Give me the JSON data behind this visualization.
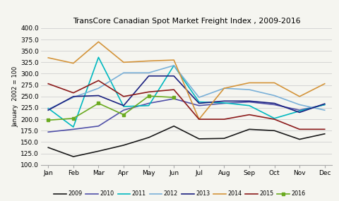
{
  "title": "TransCore Canadian Spot Market Freight Index , 2009-2016",
  "ylabel": "January  2002 = 100",
  "months": [
    "Jan",
    "Feb",
    "Mar",
    "Apr",
    "May",
    "Jun",
    "Jul",
    "Aug",
    "Sep",
    "Oct",
    "Nov",
    "Dec"
  ],
  "ylim": [
    100.0,
    400.0
  ],
  "yticks": [
    100.0,
    125.0,
    150.0,
    175.0,
    200.0,
    225.0,
    250.0,
    275.0,
    300.0,
    325.0,
    350.0,
    375.0,
    400.0
  ],
  "series": {
    "2009": {
      "values": [
        138,
        118,
        130,
        143,
        160,
        185,
        157,
        158,
        178,
        175,
        156,
        168
      ],
      "color": "#1a1a1a",
      "linewidth": 1.2,
      "marker": "None",
      "zorder": 2
    },
    "2010": {
      "values": [
        172,
        178,
        185,
        220,
        235,
        245,
        230,
        235,
        238,
        232,
        220,
        232
      ],
      "color": "#5050a8",
      "linewidth": 1.2,
      "marker": "None",
      "zorder": 2
    },
    "2011": {
      "values": [
        224,
        183,
        336,
        228,
        230,
        318,
        238,
        236,
        230,
        202,
        218,
        232
      ],
      "color": "#00b8c0",
      "linewidth": 1.2,
      "marker": "None",
      "zorder": 2
    },
    "2012": {
      "values": [
        222,
        248,
        268,
        302,
        302,
        318,
        248,
        268,
        265,
        252,
        232,
        220
      ],
      "color": "#7ab0d8",
      "linewidth": 1.2,
      "marker": "None",
      "zorder": 2
    },
    "2013": {
      "values": [
        220,
        250,
        252,
        230,
        295,
        295,
        235,
        240,
        240,
        235,
        215,
        234
      ],
      "color": "#1a2080",
      "linewidth": 1.2,
      "marker": "None",
      "zorder": 2
    },
    "2014": {
      "values": [
        335,
        323,
        370,
        325,
        328,
        330,
        200,
        268,
        280,
        280,
        250,
        278
      ],
      "color": "#d4943a",
      "linewidth": 1.2,
      "marker": "None",
      "zorder": 2
    },
    "2015": {
      "values": [
        278,
        258,
        285,
        250,
        260,
        265,
        200,
        200,
        210,
        200,
        178,
        178
      ],
      "color": "#8b1a1a",
      "linewidth": 1.2,
      "marker": "None",
      "zorder": 2
    },
    "2016": {
      "values": [
        198,
        202,
        235,
        210,
        251,
        248,
        null,
        null,
        null,
        null,
        null,
        null
      ],
      "color": "#6aaa20",
      "linewidth": 1.2,
      "marker": "s",
      "zorder": 3
    }
  },
  "legend_order": [
    "2009",
    "2010",
    "2011",
    "2012",
    "2013",
    "2014",
    "2015",
    "2016"
  ],
  "background_color": "#f5f5f0",
  "plot_bg": "#f5f5f0",
  "grid_color": "#c8c8c8"
}
